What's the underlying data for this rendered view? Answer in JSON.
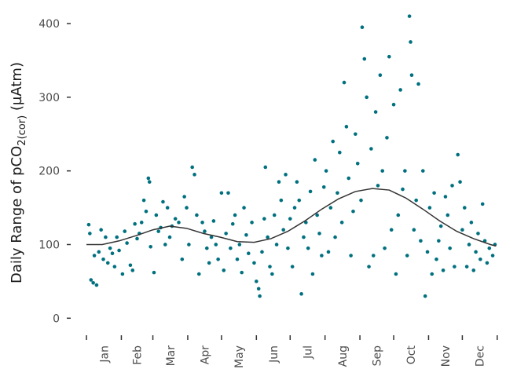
{
  "chart_data": {
    "type": "scatter",
    "ylabel": {
      "text": "Daily Range of pCO",
      "subscript": "2(cor)",
      "suffix": " (µAtm)"
    },
    "categories": [
      "Jan",
      "Feb",
      "Mar",
      "Apr",
      "May",
      "Jun",
      "Jul",
      "Aug",
      "Sep",
      "Oct",
      "Nov",
      "Dec"
    ],
    "xlim": [
      -13,
      378
    ],
    "xticks": [
      1,
      32,
      60,
      91,
      121,
      152,
      182,
      213,
      244,
      274,
      305,
      335,
      366
    ],
    "ylim": [
      -21,
      416
    ],
    "yticks": [
      0,
      100,
      200,
      300,
      400
    ],
    "series": [
      {
        "color": "#00707f",
        "x": [
          3,
          4,
          5,
          7,
          8,
          10,
          12,
          14,
          16,
          18,
          20,
          22,
          24,
          26,
          28,
          30,
          33,
          35,
          37,
          40,
          42,
          44,
          46,
          48,
          50,
          52,
          54,
          56,
          57,
          58,
          61,
          63,
          65,
          67,
          69,
          71,
          73,
          75,
          77,
          80,
          83,
          86,
          88,
          90,
          92,
          95,
          97,
          99,
          101,
          104,
          106,
          108,
          110,
          112,
          114,
          116,
          118,
          121,
          123,
          125,
          127,
          129,
          131,
          133,
          135,
          137,
          139,
          141,
          143,
          145,
          148,
          150,
          152,
          154,
          155,
          157,
          159,
          160,
          162,
          164,
          166,
          168,
          170,
          172,
          174,
          176,
          178,
          180,
          182,
          184,
          186,
          188,
          190,
          192,
          194,
          196,
          198,
          200,
          202,
          204,
          206,
          208,
          210,
          212,
          214,
          216,
          218,
          220,
          222,
          224,
          226,
          228,
          230,
          232,
          234,
          236,
          238,
          240,
          242,
          245,
          246,
          248,
          250,
          252,
          254,
          256,
          258,
          260,
          262,
          264,
          266,
          268,
          270,
          272,
          274,
          276,
          278,
          280,
          282,
          284,
          286,
          288,
          289,
          290,
          292,
          294,
          296,
          298,
          300,
          302,
          304,
          306,
          308,
          310,
          312,
          314,
          316,
          318,
          320,
          322,
          324,
          326,
          328,
          331,
          333,
          335,
          337,
          339,
          341,
          343,
          345,
          347,
          349,
          351,
          353,
          355,
          357,
          359,
          362,
          364
        ],
        "values": [
          127,
          115,
          52,
          48,
          85,
          45,
          90,
          120,
          80,
          110,
          75,
          95,
          88,
          70,
          110,
          92,
          60,
          118,
          102,
          72,
          65,
          128,
          108,
          115,
          130,
          160,
          145,
          190,
          185,
          97,
          62,
          140,
          118,
          123,
          158,
          100,
          150,
          110,
          125,
          135,
          130,
          80,
          165,
          150,
          100,
          205,
          195,
          140,
          60,
          130,
          118,
          95,
          75,
          110,
          132,
          100,
          80,
          170,
          65,
          115,
          170,
          95,
          128,
          140,
          80,
          100,
          62,
          150,
          113,
          88,
          130,
          75,
          50,
          40,
          30,
          90,
          135,
          205,
          110,
          70,
          60,
          140,
          100,
          185,
          160,
          120,
          195,
          95,
          135,
          70,
          150,
          185,
          160,
          33,
          110,
          130,
          95,
          172,
          60,
          215,
          140,
          115,
          85,
          178,
          200,
          90,
          150,
          240,
          110,
          170,
          225,
          130,
          320,
          260,
          190,
          85,
          145,
          250,
          210,
          160,
          395,
          352,
          300,
          70,
          230,
          85,
          280,
          180,
          330,
          200,
          95,
          245,
          355,
          120,
          290,
          60,
          140,
          310,
          175,
          200,
          85,
          410,
          375,
          330,
          120,
          160,
          318,
          105,
          200,
          30,
          90,
          150,
          60,
          170,
          80,
          105,
          125,
          65,
          165,
          140,
          95,
          180,
          70,
          222,
          185,
          120,
          150,
          70,
          100,
          130,
          65,
          90,
          115,
          80,
          155,
          105,
          75,
          95,
          85,
          100
        ]
      },
      {
        "type": "line",
        "color": "#333333",
        "x": [
          1,
          15,
          30,
          45,
          60,
          75,
          90,
          105,
          120,
          135,
          150,
          165,
          180,
          195,
          210,
          225,
          240,
          255,
          270,
          285,
          300,
          315,
          330,
          345,
          360,
          365
        ],
        "values": [
          100,
          100,
          105,
          112,
          120,
          125,
          122,
          115,
          110,
          104,
          103,
          108,
          118,
          132,
          148,
          162,
          172,
          176,
          174,
          163,
          148,
          132,
          118,
          108,
          100,
          98
        ]
      }
    ]
  }
}
